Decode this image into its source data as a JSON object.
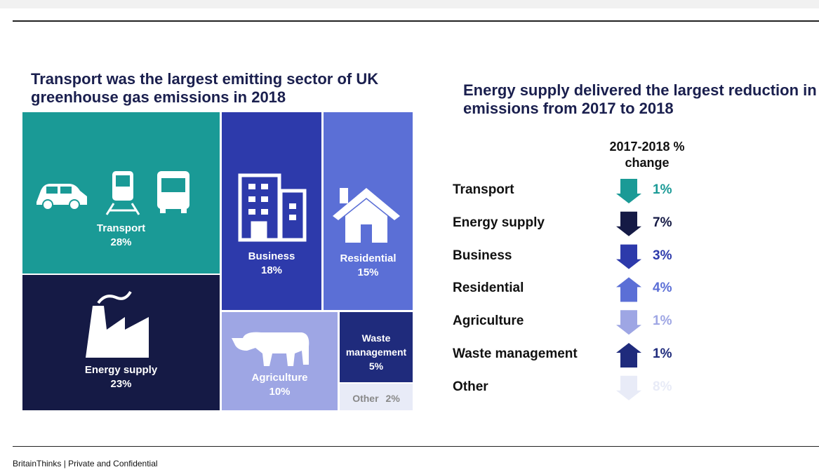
{
  "chart_data": [
    {
      "type": "treemap",
      "title": "Transport was the largest emitting sector of UK greenhouse gas emissions in 2018",
      "categories": [
        "Transport",
        "Energy supply",
        "Business",
        "Residential",
        "Agriculture",
        "Waste management",
        "Other"
      ],
      "values": [
        28,
        23,
        18,
        15,
        10,
        5,
        2
      ],
      "value_labels": [
        "28%",
        "23%",
        "18%",
        "15%",
        "10%",
        "5%",
        "2%"
      ],
      "colors": [
        "#1a9a96",
        "#151a45",
        "#2d3aab",
        "#5b6fd6",
        "#9ea6e4",
        "#1f2b7c",
        "#e8ebf7"
      ]
    },
    {
      "type": "change-list",
      "title": "Energy supply delivered the largest reduction in emissions from 2017 to 2018",
      "column_header": "2017-2018 % change",
      "categories": [
        "Transport",
        "Energy supply",
        "Business",
        "Residential",
        "Agriculture",
        "Waste management",
        "Other"
      ],
      "values": [
        1,
        7,
        3,
        4,
        1,
        1,
        8
      ],
      "value_labels": [
        "1%",
        "7%",
        "3%",
        "4%",
        "1%",
        "1%",
        "8%"
      ],
      "direction": [
        "down",
        "down",
        "down",
        "up",
        "down",
        "up",
        "down"
      ],
      "colors": [
        "#1a9a96",
        "#151a45",
        "#2d3aab",
        "#5b6fd6",
        "#9ea6e4",
        "#1f2b7c",
        "#e8ebf7"
      ]
    }
  ],
  "footer": "BritainThinks | Private and Confidential"
}
